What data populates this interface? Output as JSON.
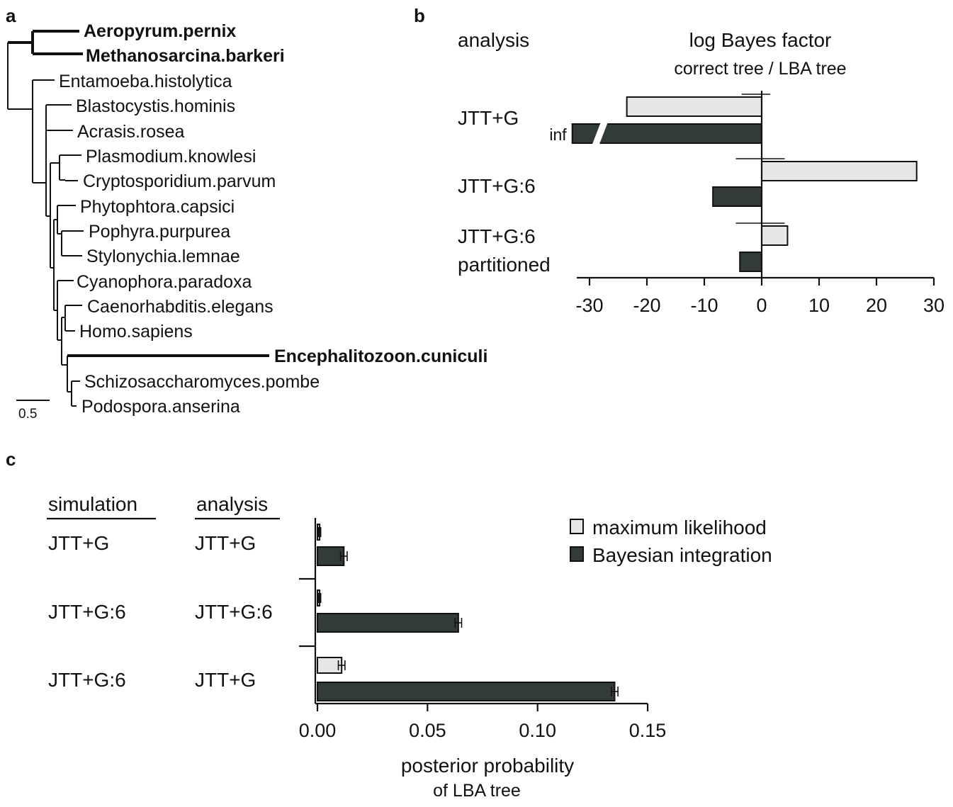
{
  "panel_letters": [
    "a",
    "b",
    "c"
  ],
  "tree": {
    "scale_label": "0.5",
    "taxa": [
      {
        "name": "Aeropyrum.pernix",
        "bold": true
      },
      {
        "name": "Methanosarcina.barkeri",
        "bold": true
      },
      {
        "name": "Entamoeba.histolytica",
        "bold": false
      },
      {
        "name": "Blastocystis.hominis",
        "bold": false
      },
      {
        "name": "Acrasis.rosea",
        "bold": false
      },
      {
        "name": "Plasmodium.knowlesi",
        "bold": false
      },
      {
        "name": "Cryptosporidium.parvum",
        "bold": false
      },
      {
        "name": "Phytophtora.capsici",
        "bold": false
      },
      {
        "name": "Pophyra.purpurea",
        "bold": false
      },
      {
        "name": "Stylonychia.lemnae",
        "bold": false
      },
      {
        "name": "Cyanophora.paradoxa",
        "bold": false
      },
      {
        "name": "Caenorhabditis.elegans",
        "bold": false
      },
      {
        "name": "Homo.sapiens",
        "bold": false
      },
      {
        "name": "Encephalitozoon.cuniculi",
        "bold": true
      },
      {
        "name": "Schizosaccharomyces.pombe",
        "bold": false
      },
      {
        "name": "Podospora.anserina",
        "bold": false
      }
    ]
  },
  "chart_data": [
    {
      "panel": "b",
      "type": "bar",
      "orientation": "horizontal",
      "row_header": "analysis",
      "title": "log Bayes factor",
      "subtitle": "correct tree / LBA tree",
      "categories": [
        "JTT+G",
        "JTT+G:6",
        "JTT+G:6 partitioned"
      ],
      "category_lines": [
        [
          "JTT+G"
        ],
        [
          "JTT+G:6"
        ],
        [
          "JTT+G:6",
          "partitioned"
        ]
      ],
      "series": [
        {
          "values": [
            -23.5,
            27,
            4.5
          ],
          "color": "#e6e6e6"
        },
        {
          "values": [
            -33,
            -8.5,
            -3.8
          ],
          "color": "#333a3a",
          "value_labels": [
            "inf",
            null,
            null
          ],
          "broken": [
            true,
            false,
            false
          ]
        }
      ],
      "error_ranges": [
        [
          -3.5,
          1.5
        ],
        [
          -4.5,
          4
        ],
        [
          -4.5,
          4
        ]
      ],
      "xlim": [
        -32,
        30
      ],
      "xticks": [
        -30,
        -20,
        -10,
        0,
        10,
        20,
        30
      ],
      "tick_labels": [
        "-30",
        "-20",
        "-10",
        "0",
        "10",
        "20",
        "30"
      ]
    },
    {
      "panel": "c",
      "type": "bar",
      "orientation": "horizontal",
      "row_headers": [
        "simulation",
        "analysis"
      ],
      "xlabel": "posterior probability",
      "xlabel_sub": "of LBA tree",
      "rows": [
        {
          "simulation": "JTT+G",
          "analysis": "JTT+G"
        },
        {
          "simulation": "JTT+G:6",
          "analysis": "JTT+G:6"
        },
        {
          "simulation": "JTT+G:6",
          "analysis": "JTT+G"
        }
      ],
      "series": [
        {
          "name": "maximum likelihood",
          "values": [
            0.001,
            0.001,
            0.011
          ],
          "errors": [
            0.0005,
            0.0005,
            0.0015
          ],
          "color": "#e6e6e6"
        },
        {
          "name": "Bayesian integration",
          "values": [
            0.012,
            0.064,
            0.135
          ],
          "errors": [
            0.0015,
            0.0015,
            0.0015
          ],
          "color": "#333a3a"
        }
      ],
      "xlim": [
        0,
        0.15
      ],
      "xticks": [
        0,
        0.05,
        0.1,
        0.15
      ],
      "tick_labels": [
        "0.00",
        "0.05",
        "0.10",
        "0.15"
      ],
      "legend_position": "top-right"
    }
  ]
}
